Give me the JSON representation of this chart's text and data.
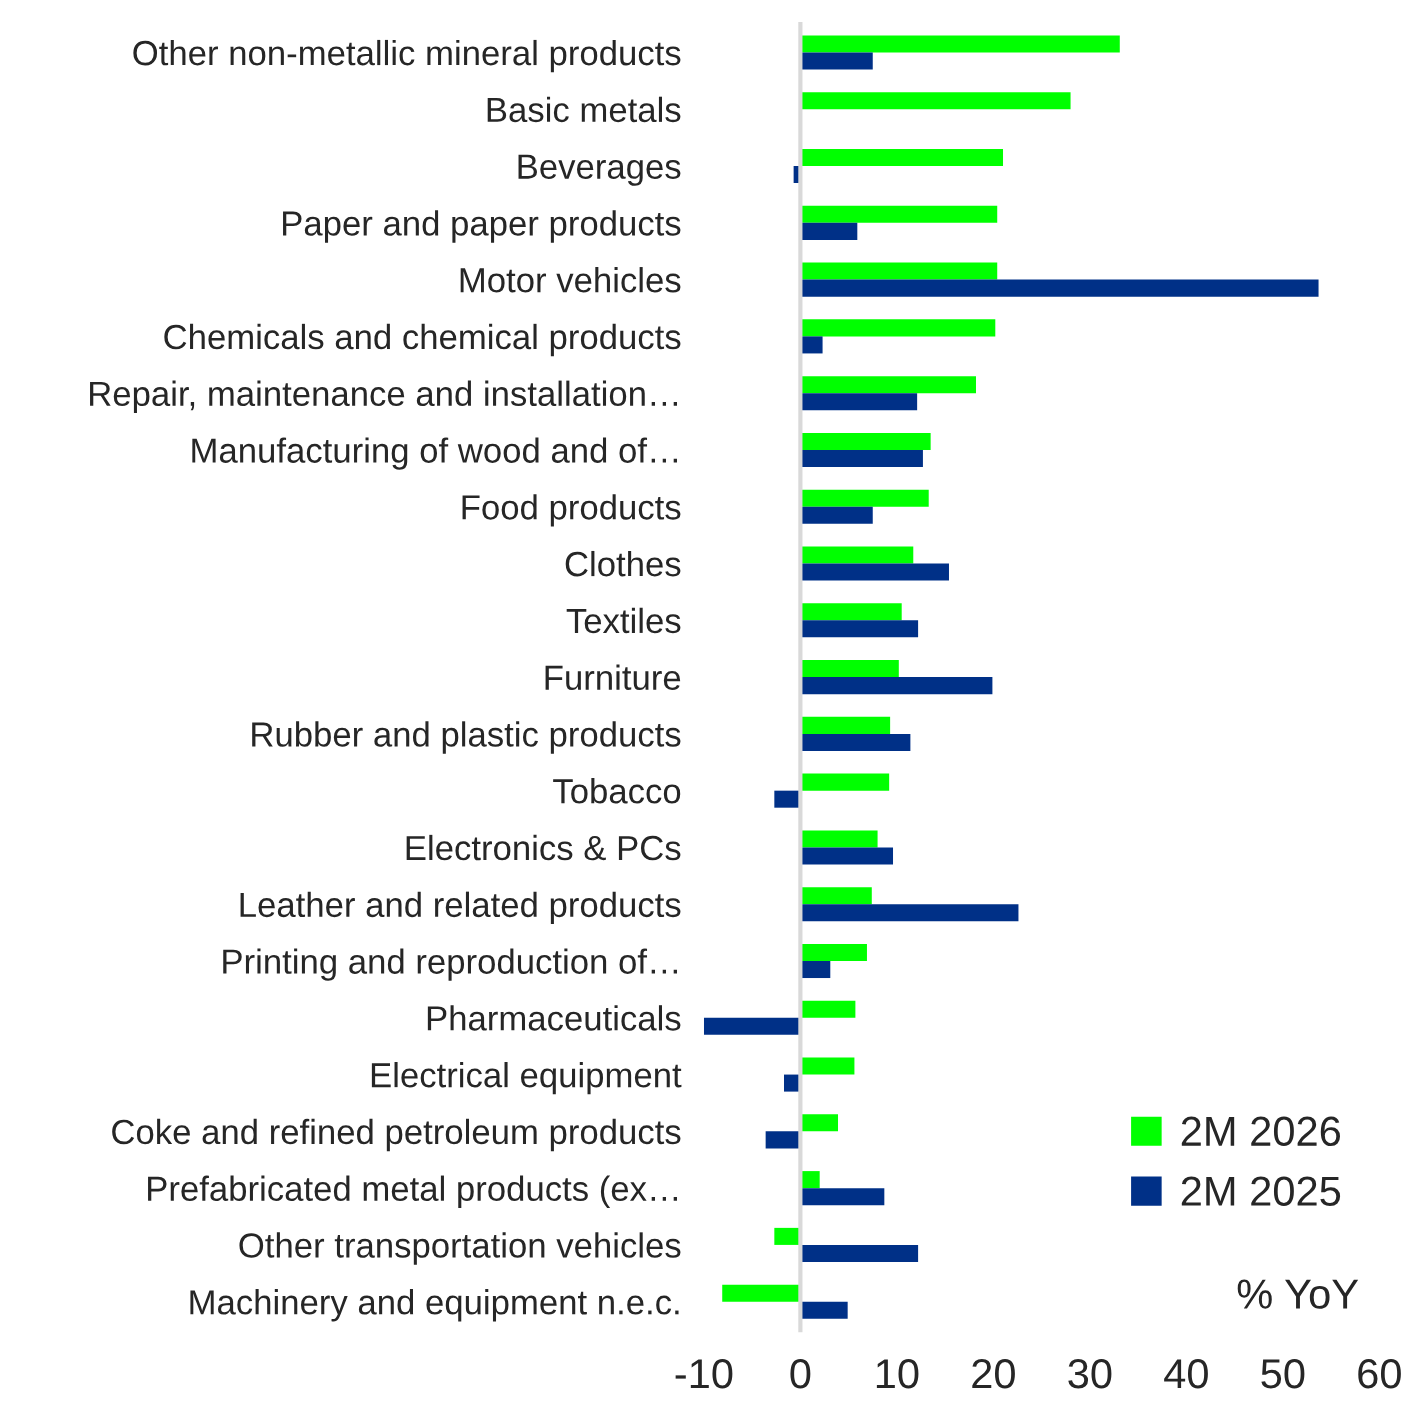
{
  "chart_data": {
    "type": "bar",
    "orientation": "horizontal",
    "categories": [
      "Other non-metallic mineral products",
      "Basic metals",
      "Beverages",
      "Paper and paper products",
      "Motor vehicles",
      "Chemicals and chemical products",
      "Repair, maintenance and installation…",
      "Manufacturing of wood and of…",
      "Food products",
      "Clothes",
      "Textiles",
      "Furniture",
      "Rubber and plastic products",
      "Tobacco",
      "Electronics & PCs",
      "Leather and related products",
      "Printing and reproduction of…",
      "Pharmaceuticals",
      "Electrical equipment",
      "Coke and refined petroleum products",
      "Prefabricated metal products (ex…",
      "Other transportation vehicles",
      "Machinery and equipment n.e.c."
    ],
    "series": [
      {
        "name": "2M 2026",
        "color": "#00ff00",
        "values": [
          33.1,
          28.0,
          21.0,
          20.4,
          20.4,
          20.2,
          18.2,
          13.5,
          13.3,
          11.7,
          10.5,
          10.2,
          9.3,
          9.2,
          8.0,
          7.4,
          6.9,
          5.7,
          5.6,
          3.9,
          2.0,
          -2.7,
          -8.1
        ]
      },
      {
        "name": "2M 2025",
        "color": "#003087",
        "values": [
          7.5,
          null,
          -0.7,
          5.9,
          53.7,
          2.3,
          12.1,
          12.7,
          7.5,
          15.4,
          12.2,
          19.9,
          11.4,
          -2.7,
          9.6,
          22.6,
          3.1,
          -10.0,
          -1.7,
          -3.6,
          8.7,
          12.2,
          4.9
        ]
      }
    ],
    "xlim": [
      -10,
      60
    ],
    "xticks": [
      -10,
      0,
      10,
      20,
      30,
      40,
      50,
      60
    ],
    "annotations": [
      "% YoY"
    ],
    "legend": "bottom right"
  }
}
